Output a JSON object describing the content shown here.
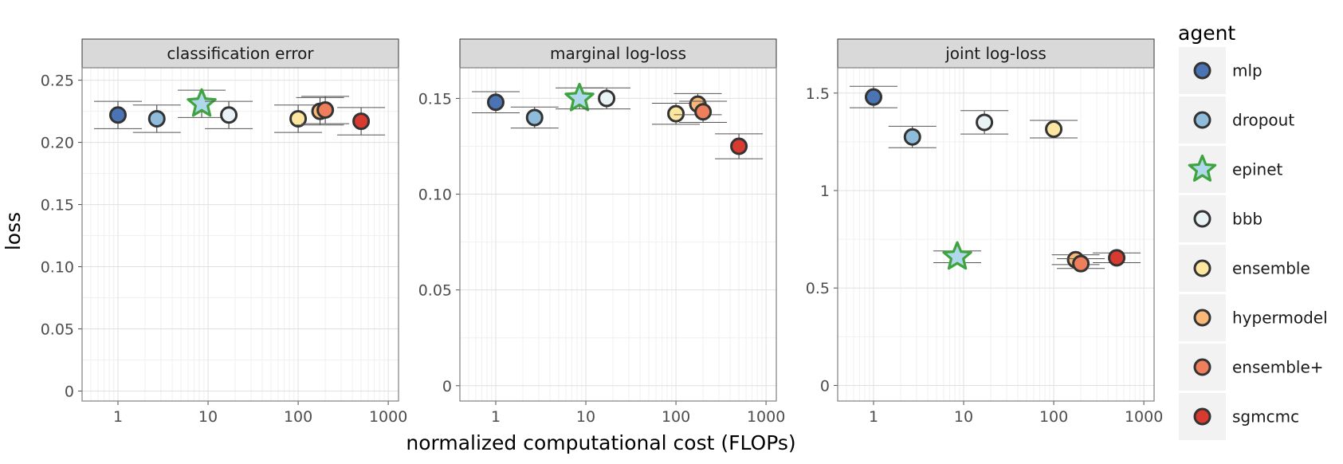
{
  "chart_data": {
    "type": "scatter",
    "xlabel": "normalized computational cost (FLOPs)",
    "ylabel": "loss",
    "x_scale": "log10",
    "xlim": [
      0.4,
      1300
    ],
    "x_ticks": [
      1,
      10,
      100,
      1000
    ],
    "x_tick_labels": [
      "1",
      "10",
      "100",
      "1000"
    ],
    "grid": true,
    "legend": {
      "title": "agent",
      "position": "right",
      "entries": [
        {
          "agent": "mlp",
          "label": "mlp",
          "color": "#4a74b4",
          "shape": "circle"
        },
        {
          "agent": "dropout",
          "label": "dropout",
          "color": "#8fbcdb",
          "shape": "circle"
        },
        {
          "agent": "epinet",
          "label": "epinet",
          "color": "#b0d8ec",
          "shape": "star"
        },
        {
          "agent": "bbb",
          "label": "bbb",
          "color": "#e9f2f4",
          "shape": "circle"
        },
        {
          "agent": "ensemble",
          "label": "ensemble",
          "color": "#fce6a0",
          "shape": "circle"
        },
        {
          "agent": "hypermodel",
          "label": "hypermodel",
          "color": "#f8b878",
          "shape": "circle"
        },
        {
          "agent": "ensemble+",
          "label": "ensemble+",
          "color": "#ee7e5c",
          "shape": "circle"
        },
        {
          "agent": "sgmcmc",
          "label": "sgmcmc",
          "color": "#d93a30",
          "shape": "circle"
        }
      ]
    },
    "star_stroke_color": "#3fa33f",
    "point_stroke_color": "#333333",
    "panels": [
      {
        "title": "classification error",
        "ylim": [
          -0.008,
          0.26
        ],
        "y_ticks": [
          0,
          0.05,
          0.1,
          0.15,
          0.2,
          0.25
        ],
        "y_tick_labels": [
          "0",
          "0.05",
          "0.10",
          "0.15",
          "0.20",
          "0.25"
        ],
        "points": [
          {
            "agent": "mlp",
            "x": 1,
            "y": 0.222,
            "err": 0.011
          },
          {
            "agent": "dropout",
            "x": 2.7,
            "y": 0.219,
            "err": 0.011
          },
          {
            "agent": "epinet",
            "x": 8.5,
            "y": 0.231,
            "err": 0.011
          },
          {
            "agent": "bbb",
            "x": 17,
            "y": 0.222,
            "err": 0.011
          },
          {
            "agent": "ensemble",
            "x": 100,
            "y": 0.219,
            "err": 0.011
          },
          {
            "agent": "hypermodel",
            "x": 175,
            "y": 0.225,
            "err": 0.011
          },
          {
            "agent": "ensemble+",
            "x": 200,
            "y": 0.226,
            "err": 0.011
          },
          {
            "agent": "sgmcmc",
            "x": 500,
            "y": 0.217,
            "err": 0.011
          }
        ]
      },
      {
        "title": "marginal log-loss",
        "ylim": [
          -0.008,
          0.166
        ],
        "y_ticks": [
          0,
          0.05,
          0.1,
          0.15
        ],
        "y_tick_labels": [
          "0",
          "0.05",
          "0.10",
          "0.15"
        ],
        "points": [
          {
            "agent": "mlp",
            "x": 1,
            "y": 0.148,
            "err": 0.0055
          },
          {
            "agent": "dropout",
            "x": 2.7,
            "y": 0.14,
            "err": 0.0055
          },
          {
            "agent": "epinet",
            "x": 8.5,
            "y": 0.15,
            "err": 0.0055
          },
          {
            "agent": "bbb",
            "x": 17,
            "y": 0.15,
            "err": 0.0055
          },
          {
            "agent": "ensemble",
            "x": 100,
            "y": 0.142,
            "err": 0.0055
          },
          {
            "agent": "hypermodel",
            "x": 175,
            "y": 0.147,
            "err": 0.0055
          },
          {
            "agent": "ensemble+",
            "x": 200,
            "y": 0.143,
            "err": 0.0055
          },
          {
            "agent": "sgmcmc",
            "x": 500,
            "y": 0.125,
            "err": 0.0065
          }
        ]
      },
      {
        "title": "joint log-loss",
        "ylim": [
          -0.08,
          1.63
        ],
        "y_ticks": [
          0,
          0.5,
          1,
          1.5
        ],
        "y_tick_labels": [
          "0",
          "0.5",
          "1",
          "1.5"
        ],
        "points": [
          {
            "agent": "mlp",
            "x": 1,
            "y": 1.48,
            "err": 0.055
          },
          {
            "agent": "dropout",
            "x": 2.7,
            "y": 1.275,
            "err": 0.055
          },
          {
            "agent": "epinet",
            "x": 8.5,
            "y": 0.66,
            "err": 0.03
          },
          {
            "agent": "bbb",
            "x": 17,
            "y": 1.35,
            "err": 0.06
          },
          {
            "agent": "ensemble",
            "x": 100,
            "y": 1.315,
            "err": 0.045
          },
          {
            "agent": "hypermodel",
            "x": 175,
            "y": 0.645,
            "err": 0.025
          },
          {
            "agent": "ensemble+",
            "x": 200,
            "y": 0.625,
            "err": 0.025
          },
          {
            "agent": "sgmcmc",
            "x": 500,
            "y": 0.655,
            "err": 0.025
          }
        ]
      }
    ]
  }
}
